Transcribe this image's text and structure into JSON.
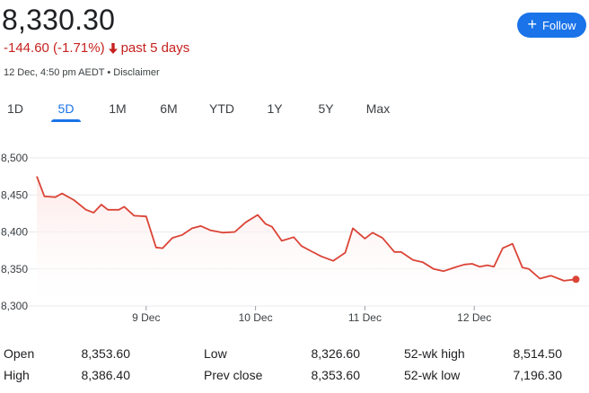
{
  "header": {
    "price": "8,330.30",
    "change": "-144.60 (-1.71%)",
    "period": "past 5 days",
    "timestamp": "12 Dec, 4:50 pm AEDT",
    "separator": "•",
    "disclaimer": "Disclaimer",
    "follow_label": "Follow"
  },
  "tabs": [
    {
      "label": "1D",
      "active": false
    },
    {
      "label": "5D",
      "active": true
    },
    {
      "label": "1M",
      "active": false
    },
    {
      "label": "6M",
      "active": false
    },
    {
      "label": "YTD",
      "active": false
    },
    {
      "label": "1Y",
      "active": false
    },
    {
      "label": "5Y",
      "active": false
    },
    {
      "label": "Max",
      "active": false
    }
  ],
  "colors": {
    "accent": "#1a73e8",
    "negative": "#c5221f",
    "line": "#db4437",
    "fill": "#fce8e6"
  },
  "chart_data": {
    "type": "area",
    "y_ticks": [
      "8,500",
      "8,450",
      "8,400",
      "8,350",
      "8,300"
    ],
    "y_tick_values": [
      8500,
      8450,
      8400,
      8350,
      8300
    ],
    "ylim": [
      8300,
      8500
    ],
    "x_ticks": [
      "9 Dec",
      "10 Dec",
      "11 Dec",
      "12 Dec"
    ],
    "x_tick_positions": [
      2,
      3,
      4,
      5
    ],
    "xlim": [
      1,
      6
    ],
    "grid": "horizontal",
    "series": [
      {
        "x": [
          1.0,
          1.07,
          1.17,
          1.23,
          1.34,
          1.45,
          1.52,
          1.59,
          1.65,
          1.75,
          1.8,
          1.89,
          2.0,
          2.09,
          2.15,
          2.24,
          2.33,
          2.42,
          2.5,
          2.59,
          2.7,
          2.81,
          2.91,
          3.02,
          3.09,
          3.15,
          3.24,
          3.35,
          3.42,
          3.51,
          3.6,
          3.71,
          3.82,
          3.89,
          4.0,
          4.07,
          4.16,
          4.27,
          4.33,
          4.44,
          4.53,
          4.63,
          4.72,
          4.82,
          4.91,
          4.98,
          5.05,
          5.12,
          5.18,
          5.26,
          5.35,
          5.44,
          5.5,
          5.6,
          5.7,
          5.82,
          5.93
        ],
        "values": [
          8475,
          8448,
          8447,
          8452,
          8443,
          8430,
          8426,
          8437,
          8430,
          8430,
          8434,
          8422,
          8421,
          8379,
          8378,
          8392,
          8396,
          8405,
          8408,
          8402,
          8399,
          8400,
          8413,
          8423,
          8411,
          8407,
          8388,
          8393,
          8381,
          8374,
          8367,
          8361,
          8372,
          8405,
          8391,
          8399,
          8392,
          8373,
          8373,
          8362,
          8359,
          8350,
          8347,
          8352,
          8356,
          8357,
          8353,
          8355,
          8353,
          8378,
          8384,
          8352,
          8350,
          8337,
          8341,
          8334,
          8336
        ]
      }
    ]
  },
  "stats": [
    {
      "label": "Open",
      "value": "8,353.60"
    },
    {
      "label": "High",
      "value": "8,386.40"
    },
    {
      "label": "Low",
      "value": "8,326.60"
    },
    {
      "label": "Prev close",
      "value": "8,353.60"
    },
    {
      "label": "52-wk high",
      "value": "8,514.50"
    },
    {
      "label": "52-wk low",
      "value": "7,196.30"
    }
  ]
}
